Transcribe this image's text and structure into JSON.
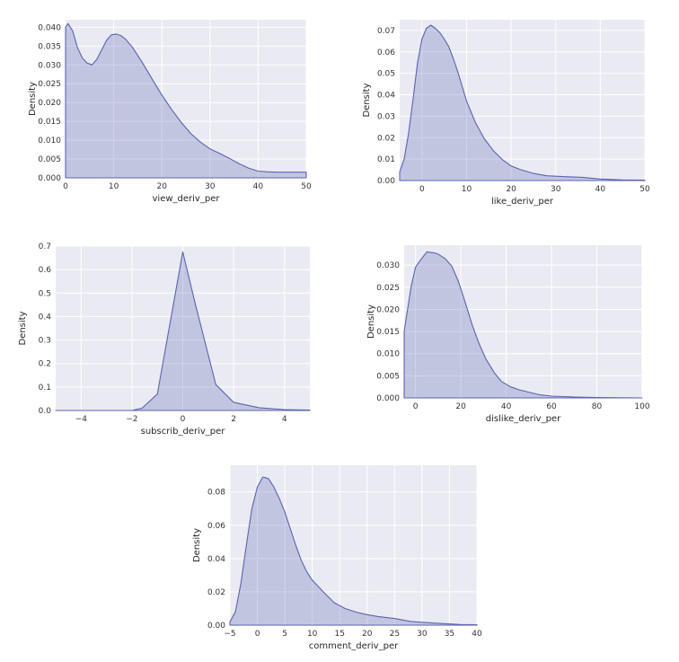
{
  "chart_data": [
    {
      "type": "area",
      "xlabel": "view_deriv_per",
      "ylabel": "Density",
      "xlim": [
        0,
        50
      ],
      "ylim": [
        0,
        0.042
      ],
      "xticks": [
        0,
        10,
        20,
        30,
        40,
        50
      ],
      "yticks": [
        0.0,
        0.005,
        0.01,
        0.015,
        0.02,
        0.025,
        0.03,
        0.035,
        0.04
      ],
      "xtick_labels": [
        "0",
        "10",
        "20",
        "30",
        "40",
        "50"
      ],
      "ytick_labels": [
        "0.000",
        "0.005",
        "0.010",
        "0.015",
        "0.020",
        "0.025",
        "0.030",
        "0.035",
        "0.040"
      ],
      "series": [
        {
          "name": "density",
          "x": [
            0,
            0.5,
            1.5,
            2.5,
            3.5,
            4.5,
            5.5,
            6.5,
            7.5,
            8.5,
            9.5,
            10.5,
            11.5,
            12.5,
            14,
            16,
            18,
            20,
            22,
            24,
            26,
            28,
            30,
            32,
            34,
            36,
            38,
            40,
            42,
            44,
            46,
            50
          ],
          "values": [
            0.04,
            0.041,
            0.039,
            0.0345,
            0.0318,
            0.0305,
            0.03,
            0.0315,
            0.034,
            0.0365,
            0.038,
            0.0382,
            0.0378,
            0.0368,
            0.0345,
            0.0305,
            0.0262,
            0.022,
            0.0182,
            0.0148,
            0.0118,
            0.0095,
            0.0077,
            0.0065,
            0.0052,
            0.0038,
            0.0026,
            0.0018,
            0.0016,
            0.0015,
            0.0015,
            0.0015
          ]
        }
      ]
    },
    {
      "type": "area",
      "xlabel": "like_deriv_per",
      "ylabel": "Density",
      "xlim": [
        -5,
        50
      ],
      "ylim": [
        0,
        0.075
      ],
      "xticks": [
        0,
        10,
        20,
        30,
        40,
        50
      ],
      "yticks": [
        0.0,
        0.01,
        0.02,
        0.03,
        0.04,
        0.05,
        0.06,
        0.07
      ],
      "xtick_labels": [
        "0",
        "10",
        "20",
        "30",
        "40",
        "50"
      ],
      "ytick_labels": [
        "0.00",
        "0.01",
        "0.02",
        "0.03",
        "0.04",
        "0.05",
        "0.06",
        "0.07"
      ],
      "series": [
        {
          "name": "density",
          "x": [
            -5,
            -4,
            -3,
            -2,
            -1,
            0,
            1,
            2,
            3,
            4,
            5,
            6,
            7,
            8,
            9,
            10,
            12,
            14,
            16,
            18,
            20,
            22,
            25,
            28,
            32,
            36,
            40,
            45,
            50
          ],
          "values": [
            0.004,
            0.01,
            0.022,
            0.038,
            0.055,
            0.066,
            0.071,
            0.0725,
            0.071,
            0.069,
            0.066,
            0.0625,
            0.057,
            0.051,
            0.044,
            0.037,
            0.027,
            0.0195,
            0.014,
            0.0098,
            0.0068,
            0.0052,
            0.0033,
            0.0022,
            0.0018,
            0.0015,
            0.0007,
            0.0003,
            0.0002
          ]
        }
      ]
    },
    {
      "type": "area",
      "xlabel": "subscrib_deriv_per",
      "ylabel": "Density",
      "xlim": [
        -5,
        5
      ],
      "ylim": [
        0,
        0.7
      ],
      "xticks": [
        -4,
        -2,
        0,
        2,
        4
      ],
      "yticks": [
        0.0,
        0.1,
        0.2,
        0.3,
        0.4,
        0.5,
        0.6,
        0.7
      ],
      "xtick_labels": [
        "−4",
        "−2",
        "0",
        "2",
        "4"
      ],
      "ytick_labels": [
        "0.0",
        "0.1",
        "0.2",
        "0.3",
        "0.4",
        "0.5",
        "0.6",
        "0.7"
      ],
      "series": [
        {
          "name": "density",
          "x": [
            -5,
            -2,
            -1.6,
            -1,
            0,
            0.5,
            1.3,
            2,
            3,
            4,
            5
          ],
          "values": [
            0,
            0,
            0.01,
            0.07,
            0.675,
            0.45,
            0.11,
            0.035,
            0.012,
            0.004,
            0.002
          ]
        }
      ]
    },
    {
      "type": "area",
      "xlabel": "dislike_deriv_per",
      "ylabel": "Density",
      "xlim": [
        -5,
        100
      ],
      "ylim": [
        0,
        0.0345
      ],
      "xticks": [
        0,
        20,
        40,
        60,
        80,
        100
      ],
      "yticks": [
        0.0,
        0.005,
        0.01,
        0.015,
        0.02,
        0.025,
        0.03
      ],
      "xtick_labels": [
        "0",
        "20",
        "40",
        "60",
        "80",
        "100"
      ],
      "ytick_labels": [
        "0.000",
        "0.005",
        "0.010",
        "0.015",
        "0.020",
        "0.025",
        "0.030"
      ],
      "series": [
        {
          "name": "density",
          "x": [
            -5,
            -2,
            0,
            2,
            5,
            8,
            10,
            13,
            16,
            19,
            22,
            25,
            28,
            31,
            35,
            38,
            42,
            46,
            50,
            55,
            60,
            70,
            80,
            90,
            100
          ],
          "values": [
            0.015,
            0.025,
            0.0295,
            0.031,
            0.033,
            0.0328,
            0.0325,
            0.0315,
            0.0298,
            0.0262,
            0.0215,
            0.0165,
            0.0123,
            0.0088,
            0.0055,
            0.0037,
            0.0025,
            0.0018,
            0.0013,
            0.0007,
            0.0004,
            0.0002,
            0.0001,
            5e-05,
            0.0
          ]
        }
      ]
    },
    {
      "type": "area",
      "xlabel": "comment_deriv_per",
      "ylabel": "Density",
      "xlim": [
        -5,
        40
      ],
      "ylim": [
        0,
        0.096
      ],
      "xticks": [
        -5,
        0,
        5,
        10,
        15,
        20,
        25,
        30,
        35,
        40
      ],
      "yticks": [
        0.0,
        0.02,
        0.04,
        0.06,
        0.08
      ],
      "xtick_labels": [
        "−5",
        "0",
        "5",
        "10",
        "15",
        "20",
        "25",
        "30",
        "35",
        "40"
      ],
      "ytick_labels": [
        "0.00",
        "0.02",
        "0.04",
        "0.06",
        "0.08"
      ],
      "series": [
        {
          "name": "density",
          "x": [
            -5,
            -4,
            -3,
            -2,
            -1,
            0,
            1,
            2,
            3,
            4,
            5,
            6,
            7,
            8,
            9,
            10,
            12,
            14,
            16,
            18,
            20,
            22,
            25,
            28,
            31,
            34,
            37,
            40
          ],
          "values": [
            0.002,
            0.008,
            0.025,
            0.048,
            0.07,
            0.083,
            0.089,
            0.088,
            0.083,
            0.076,
            0.068,
            0.058,
            0.048,
            0.039,
            0.032,
            0.027,
            0.02,
            0.0135,
            0.01,
            0.0078,
            0.0063,
            0.0052,
            0.004,
            0.0022,
            0.0015,
            0.0009,
            0.0004,
            0.0002
          ]
        }
      ]
    }
  ]
}
